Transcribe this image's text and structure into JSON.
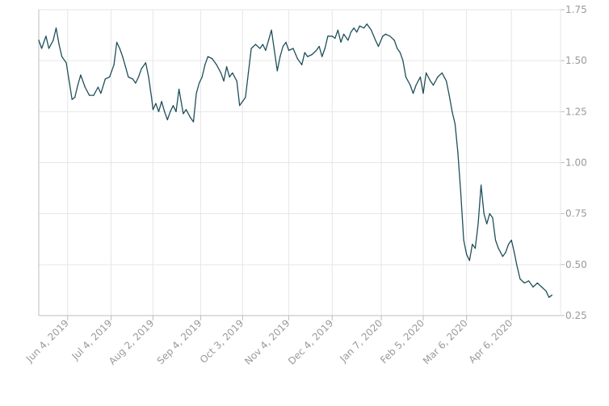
{
  "chart_data": {
    "type": "line",
    "title": "",
    "xlabel": "",
    "ylabel": "",
    "grid": true,
    "legend": "none",
    "colors": {
      "line": "#1f4f5a",
      "grid": "#e6e6e6",
      "axis": "#bdbdbd",
      "tick_text": "#9a9a9a"
    },
    "y_axis": {
      "position": "right",
      "ylim": [
        0.25,
        1.75
      ],
      "ticks": [
        "0.25",
        "0.50",
        "0.75",
        "1.00",
        "1.25",
        "1.50",
        "1.75"
      ]
    },
    "x_axis": {
      "xlim": [
        "2019-05-15",
        "2020-05-10"
      ],
      "ticks": [
        {
          "date": "2019-06-04",
          "label": "Jun 4, 2019"
        },
        {
          "date": "2019-07-04",
          "label": "Jul 4, 2019"
        },
        {
          "date": "2019-08-02",
          "label": "Aug 2, 2019"
        },
        {
          "date": "2019-09-04",
          "label": "Sep 4, 2019"
        },
        {
          "date": "2019-10-03",
          "label": "Oct 3, 2019"
        },
        {
          "date": "2019-11-04",
          "label": "Nov 4, 2019"
        },
        {
          "date": "2019-12-04",
          "label": "Dec 4, 2019"
        },
        {
          "date": "2020-01-07",
          "label": "Jan 7, 2020"
        },
        {
          "date": "2020-02-05",
          "label": "Feb 5, 2020"
        },
        {
          "date": "2020-03-06",
          "label": "Mar 6, 2020"
        },
        {
          "date": "2020-04-06",
          "label": "Apr 6, 2020"
        }
      ]
    },
    "series": [
      {
        "points": [
          [
            "2019-05-15",
            1.6
          ],
          [
            "2019-05-17",
            1.56
          ],
          [
            "2019-05-20",
            1.62
          ],
          [
            "2019-05-22",
            1.56
          ],
          [
            "2019-05-25",
            1.6
          ],
          [
            "2019-05-27",
            1.66
          ],
          [
            "2019-05-29",
            1.58
          ],
          [
            "2019-05-31",
            1.52
          ],
          [
            "2019-06-03",
            1.49
          ],
          [
            "2019-06-05",
            1.4
          ],
          [
            "2019-06-07",
            1.31
          ],
          [
            "2019-06-09",
            1.32
          ],
          [
            "2019-06-11",
            1.38
          ],
          [
            "2019-06-13",
            1.43
          ],
          [
            "2019-06-16",
            1.37
          ],
          [
            "2019-06-19",
            1.33
          ],
          [
            "2019-06-22",
            1.33
          ],
          [
            "2019-06-25",
            1.37
          ],
          [
            "2019-06-27",
            1.34
          ],
          [
            "2019-06-30",
            1.41
          ],
          [
            "2019-07-03",
            1.42
          ],
          [
            "2019-07-06",
            1.48
          ],
          [
            "2019-07-08",
            1.59
          ],
          [
            "2019-07-10",
            1.56
          ],
          [
            "2019-07-12",
            1.52
          ],
          [
            "2019-07-14",
            1.47
          ],
          [
            "2019-07-16",
            1.42
          ],
          [
            "2019-07-19",
            1.41
          ],
          [
            "2019-07-21",
            1.39
          ],
          [
            "2019-07-23",
            1.42
          ],
          [
            "2019-07-25",
            1.46
          ],
          [
            "2019-07-28",
            1.49
          ],
          [
            "2019-07-30",
            1.42
          ],
          [
            "2019-08-01",
            1.32
          ],
          [
            "2019-08-02",
            1.26
          ],
          [
            "2019-08-04",
            1.29
          ],
          [
            "2019-08-06",
            1.25
          ],
          [
            "2019-08-08",
            1.3
          ],
          [
            "2019-08-10",
            1.25
          ],
          [
            "2019-08-12",
            1.21
          ],
          [
            "2019-08-14",
            1.25
          ],
          [
            "2019-08-16",
            1.28
          ],
          [
            "2019-08-18",
            1.25
          ],
          [
            "2019-08-20",
            1.36
          ],
          [
            "2019-08-23",
            1.24
          ],
          [
            "2019-08-25",
            1.26
          ],
          [
            "2019-08-28",
            1.22
          ],
          [
            "2019-08-30",
            1.2
          ],
          [
            "2019-09-01",
            1.34
          ],
          [
            "2019-09-03",
            1.39
          ],
          [
            "2019-09-05",
            1.42
          ],
          [
            "2019-09-07",
            1.48
          ],
          [
            "2019-09-09",
            1.52
          ],
          [
            "2019-09-12",
            1.51
          ],
          [
            "2019-09-15",
            1.48
          ],
          [
            "2019-09-18",
            1.44
          ],
          [
            "2019-09-20",
            1.4
          ],
          [
            "2019-09-22",
            1.47
          ],
          [
            "2019-09-24",
            1.42
          ],
          [
            "2019-09-26",
            1.44
          ],
          [
            "2019-09-29",
            1.4
          ],
          [
            "2019-10-01",
            1.28
          ],
          [
            "2019-10-03",
            1.3
          ],
          [
            "2019-10-05",
            1.32
          ],
          [
            "2019-10-07",
            1.44
          ],
          [
            "2019-10-09",
            1.56
          ],
          [
            "2019-10-12",
            1.58
          ],
          [
            "2019-10-15",
            1.56
          ],
          [
            "2019-10-17",
            1.58
          ],
          [
            "2019-10-19",
            1.55
          ],
          [
            "2019-10-21",
            1.6
          ],
          [
            "2019-10-23",
            1.65
          ],
          [
            "2019-10-25",
            1.55
          ],
          [
            "2019-10-27",
            1.45
          ],
          [
            "2019-10-29",
            1.52
          ],
          [
            "2019-10-31",
            1.57
          ],
          [
            "2019-11-02",
            1.59
          ],
          [
            "2019-11-04",
            1.55
          ],
          [
            "2019-11-07",
            1.56
          ],
          [
            "2019-11-10",
            1.51
          ],
          [
            "2019-11-13",
            1.48
          ],
          [
            "2019-11-15",
            1.54
          ],
          [
            "2019-11-17",
            1.52
          ],
          [
            "2019-11-20",
            1.53
          ],
          [
            "2019-11-23",
            1.55
          ],
          [
            "2019-11-25",
            1.57
          ],
          [
            "2019-11-27",
            1.52
          ],
          [
            "2019-11-29",
            1.56
          ],
          [
            "2019-12-01",
            1.62
          ],
          [
            "2019-12-04",
            1.62
          ],
          [
            "2019-12-06",
            1.61
          ],
          [
            "2019-12-08",
            1.65
          ],
          [
            "2019-12-10",
            1.59
          ],
          [
            "2019-12-12",
            1.63
          ],
          [
            "2019-12-15",
            1.6
          ],
          [
            "2019-12-17",
            1.64
          ],
          [
            "2019-12-19",
            1.66
          ],
          [
            "2019-12-21",
            1.64
          ],
          [
            "2019-12-23",
            1.67
          ],
          [
            "2019-12-26",
            1.66
          ],
          [
            "2019-12-28",
            1.68
          ],
          [
            "2019-12-31",
            1.65
          ],
          [
            "2020-01-03",
            1.6
          ],
          [
            "2020-01-05",
            1.57
          ],
          [
            "2020-01-08",
            1.62
          ],
          [
            "2020-01-10",
            1.63
          ],
          [
            "2020-01-13",
            1.62
          ],
          [
            "2020-01-16",
            1.6
          ],
          [
            "2020-01-18",
            1.56
          ],
          [
            "2020-01-20",
            1.54
          ],
          [
            "2020-01-22",
            1.5
          ],
          [
            "2020-01-24",
            1.42
          ],
          [
            "2020-01-27",
            1.38
          ],
          [
            "2020-01-29",
            1.34
          ],
          [
            "2020-01-31",
            1.38
          ],
          [
            "2020-02-03",
            1.42
          ],
          [
            "2020-02-05",
            1.34
          ],
          [
            "2020-02-07",
            1.44
          ],
          [
            "2020-02-10",
            1.4
          ],
          [
            "2020-02-12",
            1.38
          ],
          [
            "2020-02-15",
            1.42
          ],
          [
            "2020-02-18",
            1.44
          ],
          [
            "2020-02-21",
            1.4
          ],
          [
            "2020-02-23",
            1.33
          ],
          [
            "2020-02-25",
            1.25
          ],
          [
            "2020-02-27",
            1.19
          ],
          [
            "2020-02-29",
            1.05
          ],
          [
            "2020-03-02",
            0.85
          ],
          [
            "2020-03-04",
            0.62
          ],
          [
            "2020-03-06",
            0.55
          ],
          [
            "2020-03-08",
            0.52
          ],
          [
            "2020-03-10",
            0.6
          ],
          [
            "2020-03-12",
            0.58
          ],
          [
            "2020-03-14",
            0.7
          ],
          [
            "2020-03-16",
            0.89
          ],
          [
            "2020-03-18",
            0.75
          ],
          [
            "2020-03-20",
            0.7
          ],
          [
            "2020-03-22",
            0.75
          ],
          [
            "2020-03-24",
            0.73
          ],
          [
            "2020-03-26",
            0.62
          ],
          [
            "2020-03-28",
            0.58
          ],
          [
            "2020-03-31",
            0.54
          ],
          [
            "2020-04-02",
            0.56
          ],
          [
            "2020-04-04",
            0.6
          ],
          [
            "2020-04-06",
            0.62
          ],
          [
            "2020-04-08",
            0.56
          ],
          [
            "2020-04-10",
            0.49
          ],
          [
            "2020-04-12",
            0.43
          ],
          [
            "2020-04-15",
            0.41
          ],
          [
            "2020-04-18",
            0.42
          ],
          [
            "2020-04-21",
            0.39
          ],
          [
            "2020-04-24",
            0.41
          ],
          [
            "2020-04-27",
            0.39
          ],
          [
            "2020-04-30",
            0.37
          ],
          [
            "2020-05-02",
            0.34
          ],
          [
            "2020-05-04",
            0.35
          ]
        ]
      }
    ]
  }
}
